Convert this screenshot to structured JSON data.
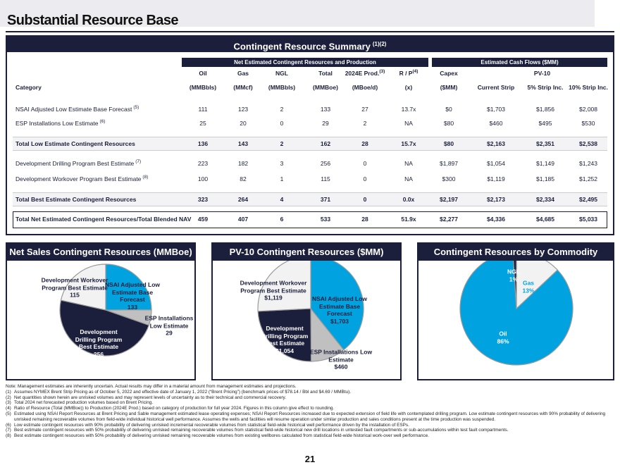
{
  "header": {
    "title": "Substantial Resource Base"
  },
  "table": {
    "title": "Contingent Resource Summary",
    "title_note": "(1)(2)",
    "groups": [
      "Net Estimated Contingent Resources and Production",
      "Estimated Cash Flows ($MM)"
    ],
    "header1": [
      {
        "text": "Oil"
      },
      {
        "text": "Gas"
      },
      {
        "text": "NGL"
      },
      {
        "text": "Total"
      },
      {
        "text": "2024E Prod.",
        "note": "(3)"
      },
      {
        "text": "R / P",
        "note": "(4)"
      },
      {
        "text": "Capex"
      },
      {
        "text": "PV-10"
      }
    ],
    "header2": [
      "Category",
      "(MMBbls)",
      "(MMcf)",
      "(MMBbls)",
      "(MMBoe)",
      "(MBoe/d)",
      "(x)",
      "($MM)",
      "Current Strip",
      "5% Strip Inc.",
      "10% Strip Inc."
    ],
    "rows": [
      {
        "label": "NSAI Adjusted Low Estimate Base Forecast",
        "note": "(5)",
        "values": [
          "111",
          "123",
          "2",
          "133",
          "27",
          "13.7x",
          "$0",
          "$1,703",
          "$1,856",
          "$2,008"
        ]
      },
      {
        "label": "ESP Installations Low Estimate",
        "note": "(6)",
        "values": [
          "25",
          "20",
          "0",
          "29",
          "2",
          "NA",
          "$80",
          "$460",
          "$495",
          "$530"
        ]
      },
      {
        "label": "Total Low Estimate Contingent Resources",
        "bold": true,
        "values": [
          "136",
          "143",
          "2",
          "162",
          "28",
          "15.7x",
          "$80",
          "$2,163",
          "$2,351",
          "$2,538"
        ]
      },
      {
        "label": "Development Drilling Program Best Estimate",
        "note": "(7)",
        "values": [
          "223",
          "182",
          "3",
          "256",
          "0",
          "NA",
          "$1,897",
          "$1,054",
          "$1,149",
          "$1,243"
        ]
      },
      {
        "label": "Development Workover Program Best Estimate",
        "note": "(8)",
        "values": [
          "100",
          "82",
          "1",
          "115",
          "0",
          "NA",
          "$300",
          "$1,119",
          "$1,185",
          "$1,252"
        ]
      },
      {
        "label": "Total Best Estimate Contingent Resources",
        "bold": true,
        "values": [
          "323",
          "264",
          "4",
          "371",
          "0",
          "0.0x",
          "$2,197",
          "$2,173",
          "$2,334",
          "$2,495"
        ]
      },
      {
        "label": "Total Net Estimated Contingent Resources/Total Blended NAV",
        "bold": true,
        "values": [
          "459",
          "407",
          "6",
          "533",
          "28",
          "51.9x",
          "$2,277",
          "$4,336",
          "$4,685",
          "$5,033"
        ]
      }
    ]
  },
  "charts": [
    {
      "type": "pie",
      "title": "Net Sales Contingent Resources (MMBoe)",
      "slices": [
        {
          "label": "NSAI Adjusted Low Estimate Base Forecast",
          "value": 133,
          "color": "#00a3e0"
        },
        {
          "label": "ESP Installations Low Estimate",
          "value": 29,
          "color": "#c0c0c0"
        },
        {
          "label": "Development Drilling Program Best Estimate",
          "value": 256,
          "color": "#1b1f3b"
        },
        {
          "label": "Development Workover Program Best Estimate",
          "value": 115,
          "color": "#f2f2f2"
        }
      ]
    },
    {
      "type": "pie",
      "title": "PV-10 Contingent Resources ($MM)",
      "slices": [
        {
          "label": "NSAI Adjusted Low Estimate Base Forecast",
          "value": 1703,
          "value_label": "$1,703",
          "color": "#00a3e0"
        },
        {
          "label": "ESP Installations Low Estimate",
          "value": 460,
          "value_label": "$460",
          "color": "#c0c0c0"
        },
        {
          "label": "Development Drilling Program Best Estimate",
          "value": 1054,
          "value_label": "$1,054",
          "color": "#1b1f3b"
        },
        {
          "label": "Development Workover Program Best Estimate",
          "value": 1119,
          "value_label": "$1,119",
          "color": "#f2f2f2"
        }
      ]
    },
    {
      "type": "pie",
      "title": "Contingent Resources by Commodity",
      "slices": [
        {
          "label": "Gas",
          "value": 13,
          "value_label": "13%",
          "color": "#f2f2f2"
        },
        {
          "label": "Oil",
          "value": 86,
          "value_label": "86%",
          "color": "#00a3e0"
        },
        {
          "label": "NGL",
          "value": 1,
          "value_label": "1%",
          "color": "#1b1f3b"
        }
      ]
    }
  ],
  "footnotes": [
    {
      "text": "Note: Management estimates are inherently uncertain. Actual results may differ in a material amount from management estimates and projections."
    },
    {
      "marker": "(1)",
      "text": "Assumes NYMEX Brent Strip Pricing as of October 5, 2022 and effective date of January 1, 2022 (“Brent Pricing”) (benchmark prices of $78.14 / Bbl and $4.69 / MMBtu)."
    },
    {
      "marker": "(2)",
      "text": "Net quantities shown herein are unrisked volumes and may represent levels of uncertainty as to their technical and commercial recovery."
    },
    {
      "marker": "(3)",
      "text": "Total 2024 net forecasted production volumes based on Brent Pricing."
    },
    {
      "marker": "(4)",
      "text": "Ratio of Resource (Total (MMBoe)) to Production (2024E Prod.) based on category of production for full year 2024. Figures in this column give effect to rounding."
    },
    {
      "marker": "(5)",
      "text": "Estimated using NSAI Report Resources at Brent Pricing and Sable management estimated lease operating expenses; NSAI Report Resources increased due to expected extension of field life with contemplated drilling program. Low estimate contingent resources with 90% probability of delivering unrisked remaining recoverable volumes from field-wide individual historical well performance.  Assumes the wells and facilities will resume operation under similar production and sales conditions present at the time production was suspended."
    },
    {
      "marker": "(6)",
      "text": "Low estimate contingent resources with 90% probability of delivering unrisked incremental recoverable volumes from statistical field-wide historical well performance driven by the installation of ESPs."
    },
    {
      "marker": "(7)",
      "text": "Best estimate contingent resources with 50% probability of delivering unrisked remaining recoverable volumes from statistical field-wide historical new drill locations in untested fault compartments or sub-accumulations within test fault compartments."
    },
    {
      "marker": "(8)",
      "text": "Best estimate contingent resources with 50% probability of delivering unrisked remaining recoverable volumes from existing wellbores calculated from statistical field-wide historical work-over well performance."
    }
  ],
  "page_number": "21"
}
